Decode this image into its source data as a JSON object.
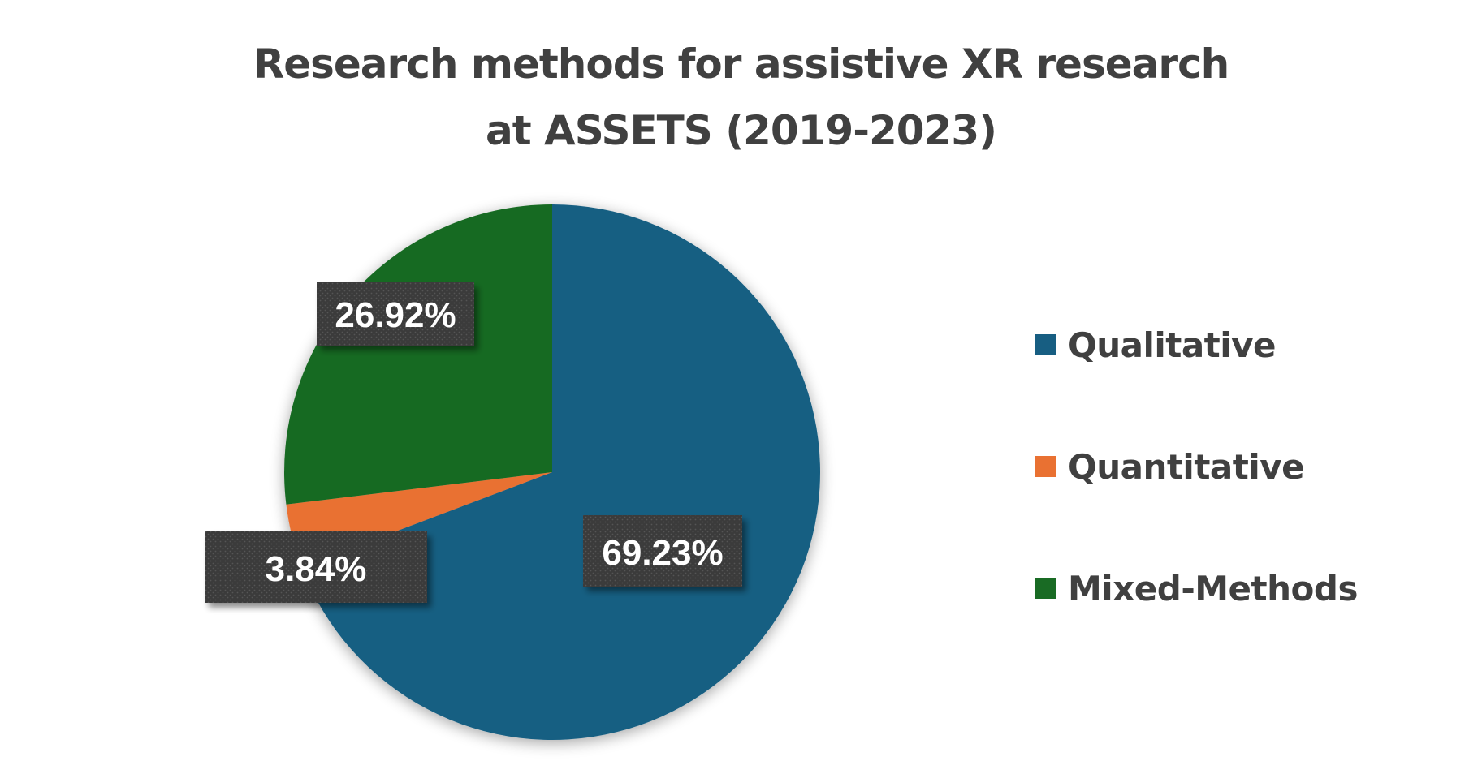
{
  "chart_data": {
    "type": "pie",
    "title_lines": [
      "Research methods for assistive XR research",
      "at ASSETS (2019-2023)"
    ],
    "categories": [
      "Qualitative",
      "Quantitative",
      "Mixed-Methods"
    ],
    "values": [
      69.23,
      3.84,
      26.92
    ],
    "data_labels": [
      "69.23%",
      "3.84%",
      "26.92%"
    ],
    "colors": [
      "#175E82",
      "#E97132",
      "#196B24"
    ],
    "legend_position": "right",
    "label_box_color": "#3A3A3A"
  }
}
